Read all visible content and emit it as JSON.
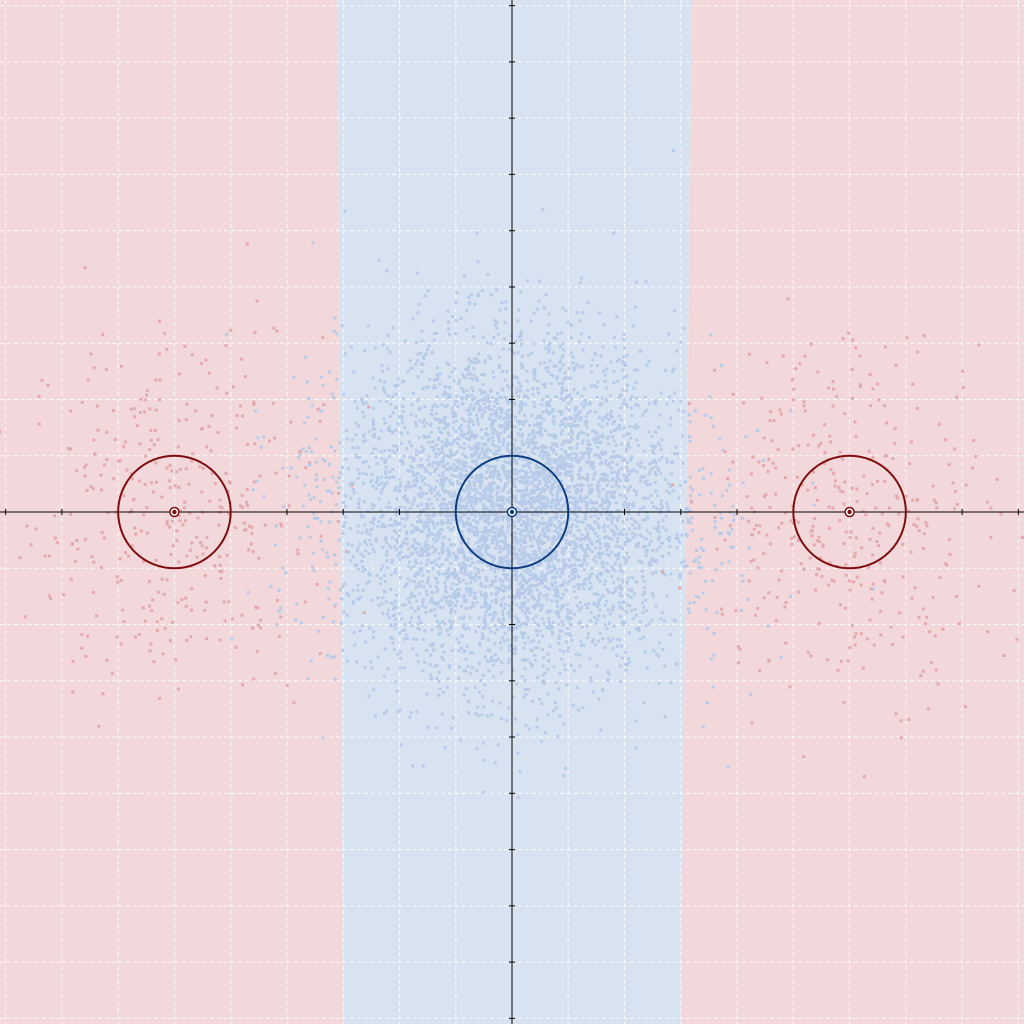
{
  "chart_data": {
    "type": "scatter",
    "xlim": [
      -9.1,
      9.1
    ],
    "ylim": [
      -9.1,
      9.1
    ],
    "axis_ticks": {
      "x": [
        -9,
        -8,
        -7,
        -6,
        -5,
        -4,
        -3,
        -2,
        -1,
        1,
        2,
        3,
        4,
        5,
        6,
        7,
        8,
        9
      ],
      "y": [
        -9,
        -8,
        -7,
        -6,
        -5,
        -4,
        -3,
        -2,
        -1,
        1,
        2,
        3,
        4,
        5,
        6,
        7,
        8,
        9
      ]
    },
    "grid": true,
    "grid_style": "dashed",
    "legend": "none",
    "decision_regions": [
      {
        "class": "red",
        "x_range_at_top": [
          -9.1,
          -3.1
        ],
        "x_range_at_bottom": [
          -9.1,
          -3.0
        ]
      },
      {
        "class": "blue",
        "x_range_at_top": [
          -3.1,
          3.2
        ],
        "x_range_at_bottom": [
          -3.0,
          3.0
        ]
      },
      {
        "class": "red",
        "x_range_at_top": [
          3.2,
          9.1
        ],
        "x_range_at_bottom": [
          3.0,
          9.1
        ]
      }
    ],
    "clusters": [
      {
        "class": "red",
        "center": [
          -6,
          0
        ],
        "std": [
          1.3,
          1.6
        ],
        "count": 360
      },
      {
        "class": "blue",
        "center": [
          0,
          0
        ],
        "std": [
          1.5,
          1.5
        ],
        "count": 5000
      },
      {
        "class": "red",
        "center": [
          6,
          0
        ],
        "std": [
          1.3,
          1.6
        ],
        "count": 360
      }
    ],
    "circles": [
      {
        "class": "red",
        "center": [
          -6,
          0
        ],
        "radius": 1
      },
      {
        "class": "blue",
        "center": [
          0,
          0
        ],
        "radius": 1
      },
      {
        "class": "red",
        "center": [
          6,
          0
        ],
        "radius": 1
      }
    ],
    "colors": {
      "red_region": "#f2d8da",
      "blue_region": "#d8e3f2",
      "red_points": "#e3a9ad",
      "blue_points": "#b7cbe9",
      "red_circle": "#7f0d0d",
      "blue_circle": "#0d3f7f",
      "axis": "#000000",
      "grid": "#ffffff"
    }
  }
}
